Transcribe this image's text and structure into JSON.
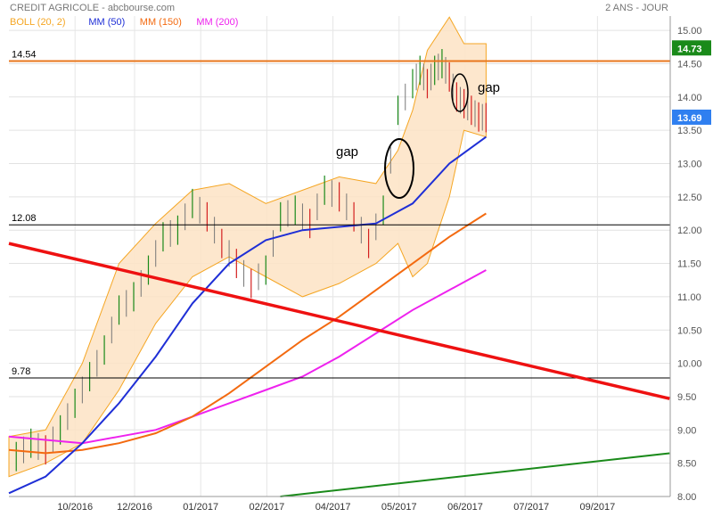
{
  "header": {
    "title": "CREDIT AGRICOLE - abcbourse.com",
    "period": "2 ANS - JOUR",
    "legend": [
      {
        "label": "BOLL (20, 2)",
        "color": "#f5a623"
      },
      {
        "label": "MM (50)",
        "color": "#1f2fd6"
      },
      {
        "label": "MM (150)",
        "color": "#f36a10"
      },
      {
        "label": "MM (200)",
        "color": "#ee22ee"
      }
    ]
  },
  "annotations": {
    "gap1": "gap",
    "gap2": "gap"
  },
  "chart_data": {
    "type": "line",
    "title": "CREDIT AGRICOLE - abcbourse.com",
    "xlabel": "",
    "ylabel": "",
    "ylim": [
      8.0,
      15.2
    ],
    "y_ticks": [
      "15.00",
      "14.50",
      "14.00",
      "13.50",
      "13.00",
      "12.50",
      "12.00",
      "11.50",
      "11.00",
      "10.50",
      "10.00",
      "9.50",
      "9.00",
      "8.50",
      "8.00"
    ],
    "x_ticks": [
      "10/2016",
      "12/2016",
      "01/2017",
      "02/2017",
      "04/2017",
      "05/2017",
      "06/2017",
      "07/2017",
      "09/2017"
    ],
    "x_tick_pos": [
      0.1,
      0.19,
      0.29,
      0.39,
      0.49,
      0.59,
      0.69,
      0.79,
      0.89
    ],
    "last_value_labels": [
      {
        "value": "14.73",
        "color": "#1a8a1a"
      },
      {
        "value": "13.69",
        "color": "#2f7ff0"
      }
    ],
    "horizontal_levels": [
      {
        "value": 14.54,
        "label": "14.54",
        "color": "#e8761c"
      },
      {
        "value": 12.08,
        "label": "12.08",
        "color": "#000000"
      },
      {
        "value": 9.78,
        "label": "9.78",
        "color": "#000000"
      }
    ],
    "trendlines": [
      {
        "name": "resistance",
        "color": "#ee1111",
        "points": [
          [
            0.0,
            11.8
          ],
          [
            0.925,
            9.47
          ]
        ]
      },
      {
        "name": "support",
        "color": "#1a8a1a",
        "points": [
          [
            0.38,
            8.0
          ],
          [
            0.925,
            8.65
          ]
        ]
      }
    ],
    "series": [
      {
        "name": "MM (50)",
        "color": "#1f2fd6",
        "x": [
          0.0,
          0.05,
          0.1,
          0.15,
          0.2,
          0.25,
          0.3,
          0.35,
          0.4,
          0.45,
          0.5,
          0.55,
          0.6,
          0.65
        ],
        "values": [
          8.05,
          8.3,
          8.8,
          9.4,
          10.1,
          10.9,
          11.5,
          11.85,
          12.0,
          12.05,
          12.1,
          12.4,
          13.0,
          13.4
        ]
      },
      {
        "name": "MM (150)",
        "color": "#f36a10",
        "x": [
          0.0,
          0.05,
          0.1,
          0.15,
          0.2,
          0.25,
          0.3,
          0.35,
          0.4,
          0.45,
          0.5,
          0.55,
          0.6,
          0.65
        ],
        "values": [
          8.7,
          8.65,
          8.7,
          8.8,
          8.95,
          9.2,
          9.55,
          9.95,
          10.35,
          10.7,
          11.1,
          11.5,
          11.9,
          12.25
        ]
      },
      {
        "name": "MM (200)",
        "color": "#ee22ee",
        "x": [
          0.0,
          0.05,
          0.1,
          0.15,
          0.2,
          0.25,
          0.3,
          0.35,
          0.4,
          0.45,
          0.5,
          0.55,
          0.6,
          0.65
        ],
        "values": [
          8.9,
          8.85,
          8.8,
          8.9,
          9.0,
          9.2,
          9.4,
          9.6,
          9.8,
          10.1,
          10.45,
          10.8,
          11.1,
          11.4
        ]
      },
      {
        "name": "BOLL upper",
        "x": [
          0.0,
          0.05,
          0.1,
          0.15,
          0.2,
          0.25,
          0.3,
          0.35,
          0.4,
          0.45,
          0.5,
          0.53,
          0.55,
          0.57,
          0.6,
          0.62,
          0.65
        ],
        "values": [
          8.9,
          9.0,
          10.0,
          11.5,
          12.1,
          12.6,
          12.7,
          12.4,
          12.6,
          12.8,
          12.7,
          13.2,
          13.8,
          14.7,
          15.2,
          14.8,
          14.8
        ]
      },
      {
        "name": "BOLL lower",
        "x": [
          0.0,
          0.05,
          0.1,
          0.15,
          0.2,
          0.25,
          0.3,
          0.35,
          0.4,
          0.45,
          0.5,
          0.53,
          0.55,
          0.57,
          0.6,
          0.62,
          0.65
        ],
        "values": [
          8.3,
          8.5,
          8.8,
          9.6,
          10.6,
          11.3,
          11.6,
          11.3,
          11.0,
          11.2,
          11.5,
          11.8,
          11.3,
          11.5,
          12.5,
          13.5,
          13.4
        ]
      },
      {
        "name": "price",
        "x": [
          0.01,
          0.03,
          0.05,
          0.07,
          0.09,
          0.11,
          0.13,
          0.15,
          0.17,
          0.19,
          0.21,
          0.23,
          0.25,
          0.27,
          0.29,
          0.31,
          0.33,
          0.35,
          0.37,
          0.39,
          0.41,
          0.43,
          0.45,
          0.47,
          0.49,
          0.51,
          0.53,
          0.55,
          0.56,
          0.57,
          0.58,
          0.59,
          0.6,
          0.61,
          0.62,
          0.63,
          0.64,
          0.65
        ],
        "values": [
          8.6,
          8.8,
          8.7,
          9.0,
          9.4,
          9.8,
          10.2,
          10.8,
          11.0,
          11.4,
          11.9,
          12.0,
          12.4,
          12.2,
          11.8,
          11.5,
          11.2,
          11.4,
          12.2,
          12.3,
          12.1,
          12.6,
          12.5,
          12.2,
          11.8,
          12.3,
          13.8,
          14.2,
          14.4,
          14.2,
          14.4,
          14.5,
          14.3,
          14.0,
          13.9,
          13.8,
          13.7,
          13.69
        ]
      }
    ]
  }
}
